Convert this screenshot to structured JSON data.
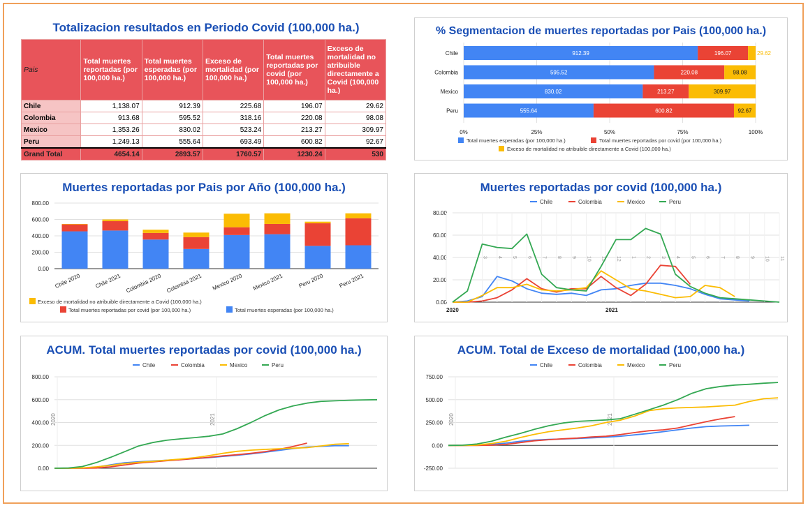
{
  "table": {
    "title": "Totalizacion resultados en Periodo Covid (100,000 ha.)",
    "headers": [
      "Pais",
      "Total muertes reportadas (por 100,000 ha.)",
      "Total muertes esperadas (por 100,000 ha.)",
      "Exceso de mortalidad (por 100,000 ha.)",
      "Total muertes reportadas por covid (por 100,000 ha.)",
      "Exceso de mortalidad no atribuible directamente a Covid (100,000 ha.)"
    ],
    "rows": [
      [
        "Chile",
        "1,138.07",
        "912.39",
        "225.68",
        "196.07",
        "29.62"
      ],
      [
        "Colombia",
        "913.68",
        "595.52",
        "318.16",
        "220.08",
        "98.08"
      ],
      [
        "Mexico",
        "1,353.26",
        "830.02",
        "523.24",
        "213.27",
        "309.97"
      ],
      [
        "Peru",
        "1,249.13",
        "555.64",
        "693.49",
        "600.82",
        "92.67"
      ]
    ],
    "grand": [
      "Grand Total",
      "4654.14",
      "2893.57",
      "1760.57",
      "1230.24",
      "530"
    ]
  },
  "colors": {
    "blue": "#4285f4",
    "red": "#ea4335",
    "yellow": "#fbbc04",
    "green": "#34a853",
    "title": "#1a4fb5",
    "table_header": "#e8545a"
  },
  "chart_data": [
    {
      "type": "bar",
      "orientation": "horizontal-stacked-100",
      "title": "% Segmentacion de muertes reportadas por Pais (100,000 ha.)",
      "categories": [
        "Chile",
        "Colombia",
        "Mexico",
        "Peru"
      ],
      "series": [
        {
          "name": "Total muertes esperadas (por 100,000 ha.)",
          "values": [
            912.39,
            595.52,
            830.02,
            555.64
          ],
          "labels": [
            "912.39",
            "595.52",
            "830.02",
            "555.64"
          ]
        },
        {
          "name": "Total muertes reportadas por covid (por 100,000 ha.)",
          "values": [
            196.07,
            220.08,
            213.27,
            600.82
          ],
          "labels": [
            "196.07",
            "220.08",
            "213.27",
            "600.82"
          ]
        },
        {
          "name": "Exceso de mortalidad no atribuible directamente a Covid (100,000 ha.)",
          "values": [
            29.62,
            98.08,
            309.97,
            92.67
          ],
          "labels": [
            "29.62",
            "98.08",
            "309.97",
            "92.67"
          ]
        }
      ],
      "xticks": [
        "0%",
        "25%",
        "50%",
        "75%",
        "100%"
      ]
    },
    {
      "type": "bar",
      "orientation": "vertical-stacked",
      "title": "Muertes reportadas por Pais por Año (100,000 ha.)",
      "categories": [
        "Chile 2020",
        "Chile 2021",
        "Colombia 2020",
        "Colombia 2021",
        "Mexico 2020",
        "Mexico 2021",
        "Peru 2020",
        "Peru 2021"
      ],
      "series": [
        {
          "name": "Total muertes esperadas (por 100,000 ha.)",
          "values": [
            455,
            465,
            355,
            240,
            410,
            420,
            278,
            285
          ]
        },
        {
          "name": "Total muertes reportadas por covid (por 100,000 ha.)",
          "values": [
            85,
            115,
            80,
            145,
            95,
            125,
            275,
            330
          ]
        },
        {
          "name": "Exceso de mortalidad no atribuible directamente a Covid (100,000 ha.)",
          "values": [
            5,
            20,
            40,
            55,
            165,
            130,
            20,
            60
          ]
        }
      ],
      "ylim": [
        0,
        800
      ],
      "yticks": [
        "0.00",
        "200.00",
        "400.00",
        "600.00",
        "800.00"
      ]
    },
    {
      "type": "line",
      "title": "Muertes reportadas por covid (100,000 ha.)",
      "x": [
        "2020-1",
        "2020-2",
        "2020-3",
        "2020-4",
        "2020-5",
        "2020-6",
        "2020-7",
        "2020-8",
        "2020-9",
        "2020-10",
        "2020-11",
        "2020-12",
        "2021-1",
        "2021-2",
        "2021-3",
        "2021-4",
        "2021-5",
        "2021-6",
        "2021-7",
        "2021-8",
        "2021-9",
        "2021-10",
        "2021-11"
      ],
      "month_labels": [
        "3",
        "4",
        "5",
        "6",
        "7",
        "8",
        "9",
        "10",
        "11",
        "12",
        "1",
        "2",
        "3",
        "4",
        "5",
        "6",
        "7",
        "8",
        "9",
        "10",
        "11"
      ],
      "year_labels": [
        "2020",
        "2021"
      ],
      "series": [
        {
          "name": "Chile",
          "values": [
            0,
            1,
            5,
            23,
            19,
            12,
            8,
            7,
            8,
            6,
            11,
            12,
            15,
            17,
            17,
            15,
            12,
            7,
            3,
            2,
            1,
            null,
            null
          ]
        },
        {
          "name": "Colombia",
          "values": [
            0,
            0,
            1,
            4,
            11,
            21,
            12,
            9,
            12,
            12,
            23,
            13,
            6,
            16,
            33,
            32,
            16,
            null,
            null,
            null,
            null,
            null,
            null
          ]
        },
        {
          "name": "Mexico",
          "values": [
            0,
            0,
            6,
            13,
            13,
            16,
            11,
            10,
            11,
            13,
            28,
            20,
            12,
            10,
            7,
            4,
            5,
            15,
            13,
            5,
            null,
            null,
            null
          ]
        },
        {
          "name": "Peru",
          "values": [
            0,
            10,
            52,
            49,
            48,
            61,
            25,
            13,
            11,
            10,
            32,
            56,
            56,
            66,
            61,
            25,
            14,
            8,
            4,
            3,
            2,
            1,
            0
          ]
        }
      ],
      "ylim": [
        0,
        80
      ],
      "yticks": [
        "0.00",
        "20.00",
        "40.00",
        "60.00",
        "80.00"
      ]
    },
    {
      "type": "line",
      "title": "ACUM. Total muertes reportadas por covid (100,000 ha.)",
      "series": [
        {
          "name": "Chile",
          "values": [
            0,
            0,
            2,
            10,
            30,
            48,
            56,
            63,
            70,
            77,
            84,
            92,
            103,
            113,
            125,
            140,
            156,
            172,
            185,
            192,
            197,
            197
          ]
        },
        {
          "name": "Colombia",
          "values": [
            0,
            0,
            0,
            2,
            12,
            28,
            45,
            55,
            66,
            74,
            85,
            95,
            108,
            118,
            130,
            145,
            165,
            190,
            220
          ]
        },
        {
          "name": "Mexico",
          "values": [
            0,
            0,
            3,
            12,
            25,
            40,
            52,
            60,
            70,
            80,
            92,
            110,
            130,
            148,
            158,
            165,
            170,
            175,
            180,
            195,
            210,
            215
          ]
        },
        {
          "name": "Peru",
          "values": [
            0,
            2,
            15,
            50,
            95,
            145,
            195,
            225,
            245,
            257,
            268,
            280,
            300,
            345,
            400,
            460,
            510,
            545,
            570,
            585,
            590,
            595,
            598,
            600
          ]
        }
      ],
      "year_labels": [
        "2020",
        "2021"
      ],
      "ylim": [
        0,
        800
      ],
      "yticks": [
        "0.00",
        "200.00",
        "400.00",
        "600.00",
        "800.00"
      ]
    },
    {
      "type": "line",
      "title": "ACUM. Total de Exceso de mortalidad (100,000 ha.)",
      "series": [
        {
          "name": "Chile",
          "values": [
            0,
            0,
            2,
            10,
            25,
            45,
            58,
            65,
            70,
            75,
            82,
            90,
            100,
            115,
            130,
            150,
            170,
            190,
            205,
            212,
            216,
            220
          ]
        },
        {
          "name": "Colombia",
          "values": [
            0,
            0,
            0,
            2,
            10,
            30,
            50,
            62,
            72,
            80,
            92,
            100,
            118,
            140,
            160,
            170,
            190,
            225,
            260,
            290,
            315
          ]
        },
        {
          "name": "Mexico",
          "values": [
            0,
            0,
            3,
            20,
            45,
            85,
            120,
            150,
            170,
            190,
            215,
            250,
            275,
            320,
            380,
            400,
            410,
            415,
            420,
            430,
            440,
            480,
            510,
            520
          ]
        },
        {
          "name": "Peru",
          "values": [
            0,
            2,
            15,
            45,
            90,
            130,
            175,
            215,
            245,
            262,
            270,
            278,
            292,
            340,
            390,
            440,
            500,
            570,
            620,
            645,
            660,
            668,
            680,
            688
          ]
        }
      ],
      "year_labels": [
        "2020",
        "2021"
      ],
      "ylim": [
        -250,
        750
      ],
      "yticks": [
        "750.00",
        "500.00",
        "250.00",
        "0.00",
        "-250.00"
      ]
    }
  ]
}
